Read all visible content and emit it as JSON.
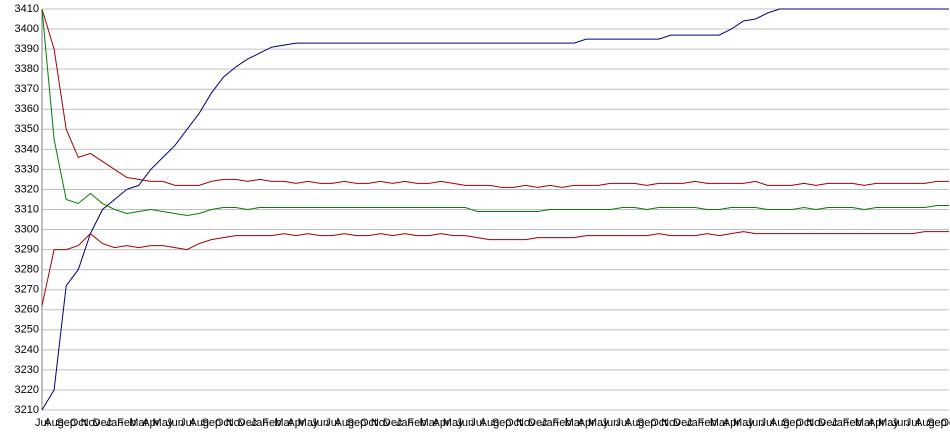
{
  "chart_data": {
    "type": "line",
    "categories": [
      "Jul",
      "Aug",
      "Sep",
      "Oct",
      "Nov",
      "Dec",
      "Jan",
      "Feb",
      "Mar",
      "Apr",
      "May",
      "Jun",
      "Jul",
      "Aug",
      "Sep",
      "Oct",
      "Nov",
      "Dec",
      "Jan",
      "Feb",
      "Mar",
      "Apr",
      "May",
      "Jun",
      "Jul",
      "Aug",
      "Sep",
      "Oct",
      "Nov",
      "Dec",
      "Jan",
      "Feb",
      "Mar",
      "Apr",
      "May",
      "Jun",
      "Jul",
      "Aug",
      "Sep",
      "Oct",
      "Nov",
      "Dec",
      "Jan",
      "Feb",
      "Mar",
      "Apr",
      "May",
      "Jun",
      "Jul",
      "Aug",
      "Sep",
      "Oct",
      "Nov",
      "Dec",
      "Jan",
      "Feb",
      "Mar",
      "Apr",
      "May",
      "Jun",
      "Jul",
      "Aug",
      "Sep",
      "Oct",
      "Nov",
      "Dec",
      "Jan",
      "Feb",
      "Mar",
      "Apr",
      "May",
      "Jun",
      "Jul",
      "Aug",
      "Sep",
      "Oct"
    ],
    "series": [
      {
        "color": "#000080",
        "values": [
          3210,
          3220,
          3272,
          3280,
          3298,
          3310,
          3315,
          3320,
          3322,
          3330,
          3336,
          3342,
          3350,
          3358,
          3368,
          3376,
          3381,
          3385,
          3388,
          3391,
          3392,
          3393,
          3393,
          3393,
          3393,
          3393,
          3393,
          3393,
          3393,
          3393,
          3393,
          3393,
          3393,
          3393,
          3393,
          3393,
          3393,
          3393,
          3393,
          3393,
          3393,
          3393,
          3393,
          3393,
          3393,
          3395,
          3395,
          3395,
          3395,
          3395,
          3395,
          3395,
          3397,
          3397,
          3397,
          3397,
          3397,
          3400,
          3404,
          3405,
          3408,
          3410,
          3410,
          3410,
          3410,
          3410,
          3410,
          3410,
          3410,
          3410,
          3410,
          3410,
          3410,
          3410,
          3410,
          3410
        ]
      },
      {
        "color": "#a00000",
        "values": [
          3410,
          3390,
          3350,
          3336,
          3338,
          3334,
          3330,
          3326,
          3325,
          3324,
          3324,
          3322,
          3322,
          3322,
          3324,
          3325,
          3325,
          3324,
          3325,
          3324,
          3324,
          3323,
          3324,
          3323,
          3323,
          3324,
          3323,
          3323,
          3324,
          3323,
          3324,
          3323,
          3323,
          3324,
          3323,
          3322,
          3322,
          3322,
          3321,
          3321,
          3322,
          3321,
          3322,
          3321,
          3322,
          3322,
          3322,
          3323,
          3323,
          3323,
          3322,
          3323,
          3323,
          3323,
          3324,
          3323,
          3323,
          3323,
          3323,
          3324,
          3322,
          3322,
          3322,
          3323,
          3322,
          3323,
          3323,
          3323,
          3322,
          3323,
          3323,
          3323,
          3323,
          3323,
          3324,
          3324
        ]
      },
      {
        "color": "#008000",
        "values": [
          3410,
          3345,
          3315,
          3313,
          3318,
          3313,
          3310,
          3308,
          3309,
          3310,
          3309,
          3308,
          3307,
          3308,
          3310,
          3311,
          3311,
          3310,
          3311,
          3311,
          3311,
          3311,
          3311,
          3311,
          3311,
          3311,
          3311,
          3311,
          3311,
          3311,
          3311,
          3311,
          3311,
          3311,
          3311,
          3311,
          3309,
          3309,
          3309,
          3309,
          3309,
          3309,
          3310,
          3310,
          3310,
          3310,
          3310,
          3310,
          3311,
          3311,
          3310,
          3311,
          3311,
          3311,
          3311,
          3310,
          3310,
          3311,
          3311,
          3311,
          3310,
          3310,
          3310,
          3311,
          3310,
          3311,
          3311,
          3311,
          3310,
          3311,
          3311,
          3311,
          3311,
          3311,
          3312,
          3312
        ]
      },
      {
        "color": "#a00000",
        "values": [
          3262,
          3290,
          3290,
          3292,
          3298,
          3293,
          3291,
          3292,
          3291,
          3292,
          3292,
          3291,
          3290,
          3293,
          3295,
          3296,
          3297,
          3297,
          3297,
          3297,
          3298,
          3297,
          3298,
          3297,
          3297,
          3298,
          3297,
          3297,
          3298,
          3297,
          3298,
          3297,
          3297,
          3298,
          3297,
          3297,
          3296,
          3295,
          3295,
          3295,
          3295,
          3296,
          3296,
          3296,
          3296,
          3297,
          3297,
          3297,
          3297,
          3297,
          3297,
          3298,
          3297,
          3297,
          3297,
          3298,
          3297,
          3298,
          3299,
          3298,
          3298,
          3298,
          3298,
          3298,
          3298,
          3298,
          3298,
          3298,
          3298,
          3298,
          3298,
          3298,
          3298,
          3299,
          3299,
          3299
        ]
      }
    ],
    "ylim": [
      3210,
      3410
    ],
    "yticks": [
      3210,
      3220,
      3230,
      3240,
      3250,
      3260,
      3270,
      3280,
      3290,
      3300,
      3310,
      3320,
      3330,
      3340,
      3350,
      3360,
      3370,
      3380,
      3390,
      3400,
      3410
    ],
    "grid": true
  }
}
